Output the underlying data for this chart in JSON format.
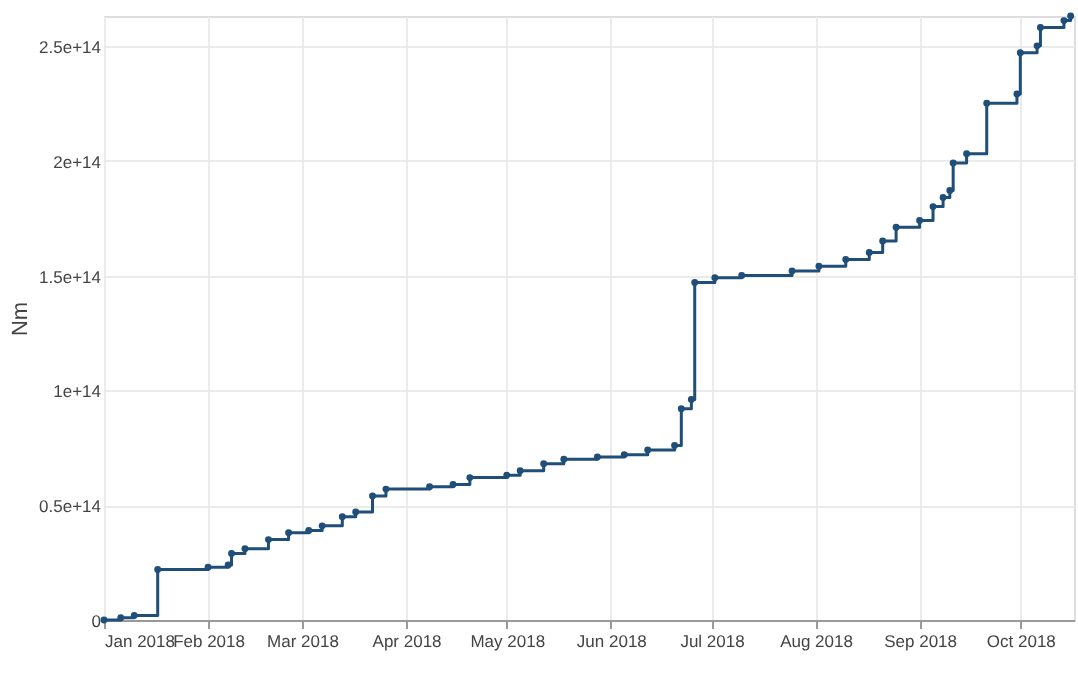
{
  "chart_data": {
    "type": "step",
    "ylabel": "Nm",
    "grid": true,
    "marker": "circle",
    "line_style": "solid",
    "xlim": [
      "2018-01-01",
      "2018-10-17"
    ],
    "xticks": [
      {
        "value": "2018-01-01",
        "label": "Jan 2018"
      },
      {
        "value": "2018-02-01",
        "label": "Feb 2018"
      },
      {
        "value": "2018-03-01",
        "label": "Mar 2018"
      },
      {
        "value": "2018-04-01",
        "label": "Apr 2018"
      },
      {
        "value": "2018-05-01",
        "label": "May 2018"
      },
      {
        "value": "2018-06-01",
        "label": "Jun 2018"
      },
      {
        "value": "2018-07-01",
        "label": "Jul 2018"
      },
      {
        "value": "2018-08-01",
        "label": "Aug 2018"
      },
      {
        "value": "2018-09-01",
        "label": "Sep 2018"
      },
      {
        "value": "2018-10-01",
        "label": "Oct 2018"
      }
    ],
    "ylim": [
      0,
      263000000000000
    ],
    "yticks": [
      0,
      {
        "value": 50000000000000,
        "label": "0.5e+14"
      },
      {
        "value": 100000000000000,
        "label": "1e+14"
      },
      {
        "value": 150000000000000,
        "label": "1.5e+14"
      },
      {
        "value": 200000000000000,
        "label": "2e+14"
      },
      {
        "value": 250000000000000,
        "label": "2.5e+14"
      }
    ],
    "x": [
      "2018-01-01",
      "2018-01-06",
      "2018-01-10",
      "2018-01-17",
      "2018-02-01",
      "2018-02-07",
      "2018-02-08",
      "2018-02-12",
      "2018-02-19",
      "2018-02-25",
      "2018-03-03",
      "2018-03-07",
      "2018-03-13",
      "2018-03-17",
      "2018-03-22",
      "2018-03-26",
      "2018-04-08",
      "2018-04-15",
      "2018-04-20",
      "2018-05-01",
      "2018-05-05",
      "2018-05-12",
      "2018-05-18",
      "2018-05-28",
      "2018-06-05",
      "2018-06-12",
      "2018-06-20",
      "2018-06-22",
      "2018-06-25",
      "2018-06-26",
      "2018-07-02",
      "2018-07-10",
      "2018-07-25",
      "2018-08-02",
      "2018-08-10",
      "2018-08-17",
      "2018-08-21",
      "2018-08-25",
      "2018-09-01",
      "2018-09-05",
      "2018-09-08",
      "2018-09-10",
      "2018-09-11",
      "2018-09-15",
      "2018-09-21",
      "2018-09-30",
      "2018-10-01",
      "2018-10-06",
      "2018-10-07",
      "2018-10-14",
      "2018-10-16"
    ],
    "series": [
      {
        "color": "#1f4e79",
        "values": [
          0,
          1000000000000,
          2000000000000,
          22000000000000,
          23000000000000,
          24000000000000,
          29000000000000,
          31000000000000,
          35000000000000,
          38000000000000,
          39000000000000,
          41000000000000,
          45000000000000,
          47000000000000,
          54000000000000,
          57000000000000,
          58000000000000,
          59000000000000,
          62000000000000,
          63000000000000,
          65000000000000,
          68000000000000,
          70000000000000,
          71000000000000,
          72000000000000,
          74000000000000,
          76000000000000,
          92000000000000,
          96000000000000,
          147000000000000,
          149000000000000,
          150000000000000,
          152000000000000,
          154000000000000,
          157000000000000,
          160000000000000,
          165000000000000,
          171000000000000,
          174000000000000,
          180000000000000,
          184000000000000,
          187000000000000,
          199000000000000,
          203000000000000,
          225000000000000,
          229000000000000,
          247000000000000,
          250000000000000,
          258000000000000,
          261000000000000,
          263000000000000
        ]
      }
    ]
  }
}
